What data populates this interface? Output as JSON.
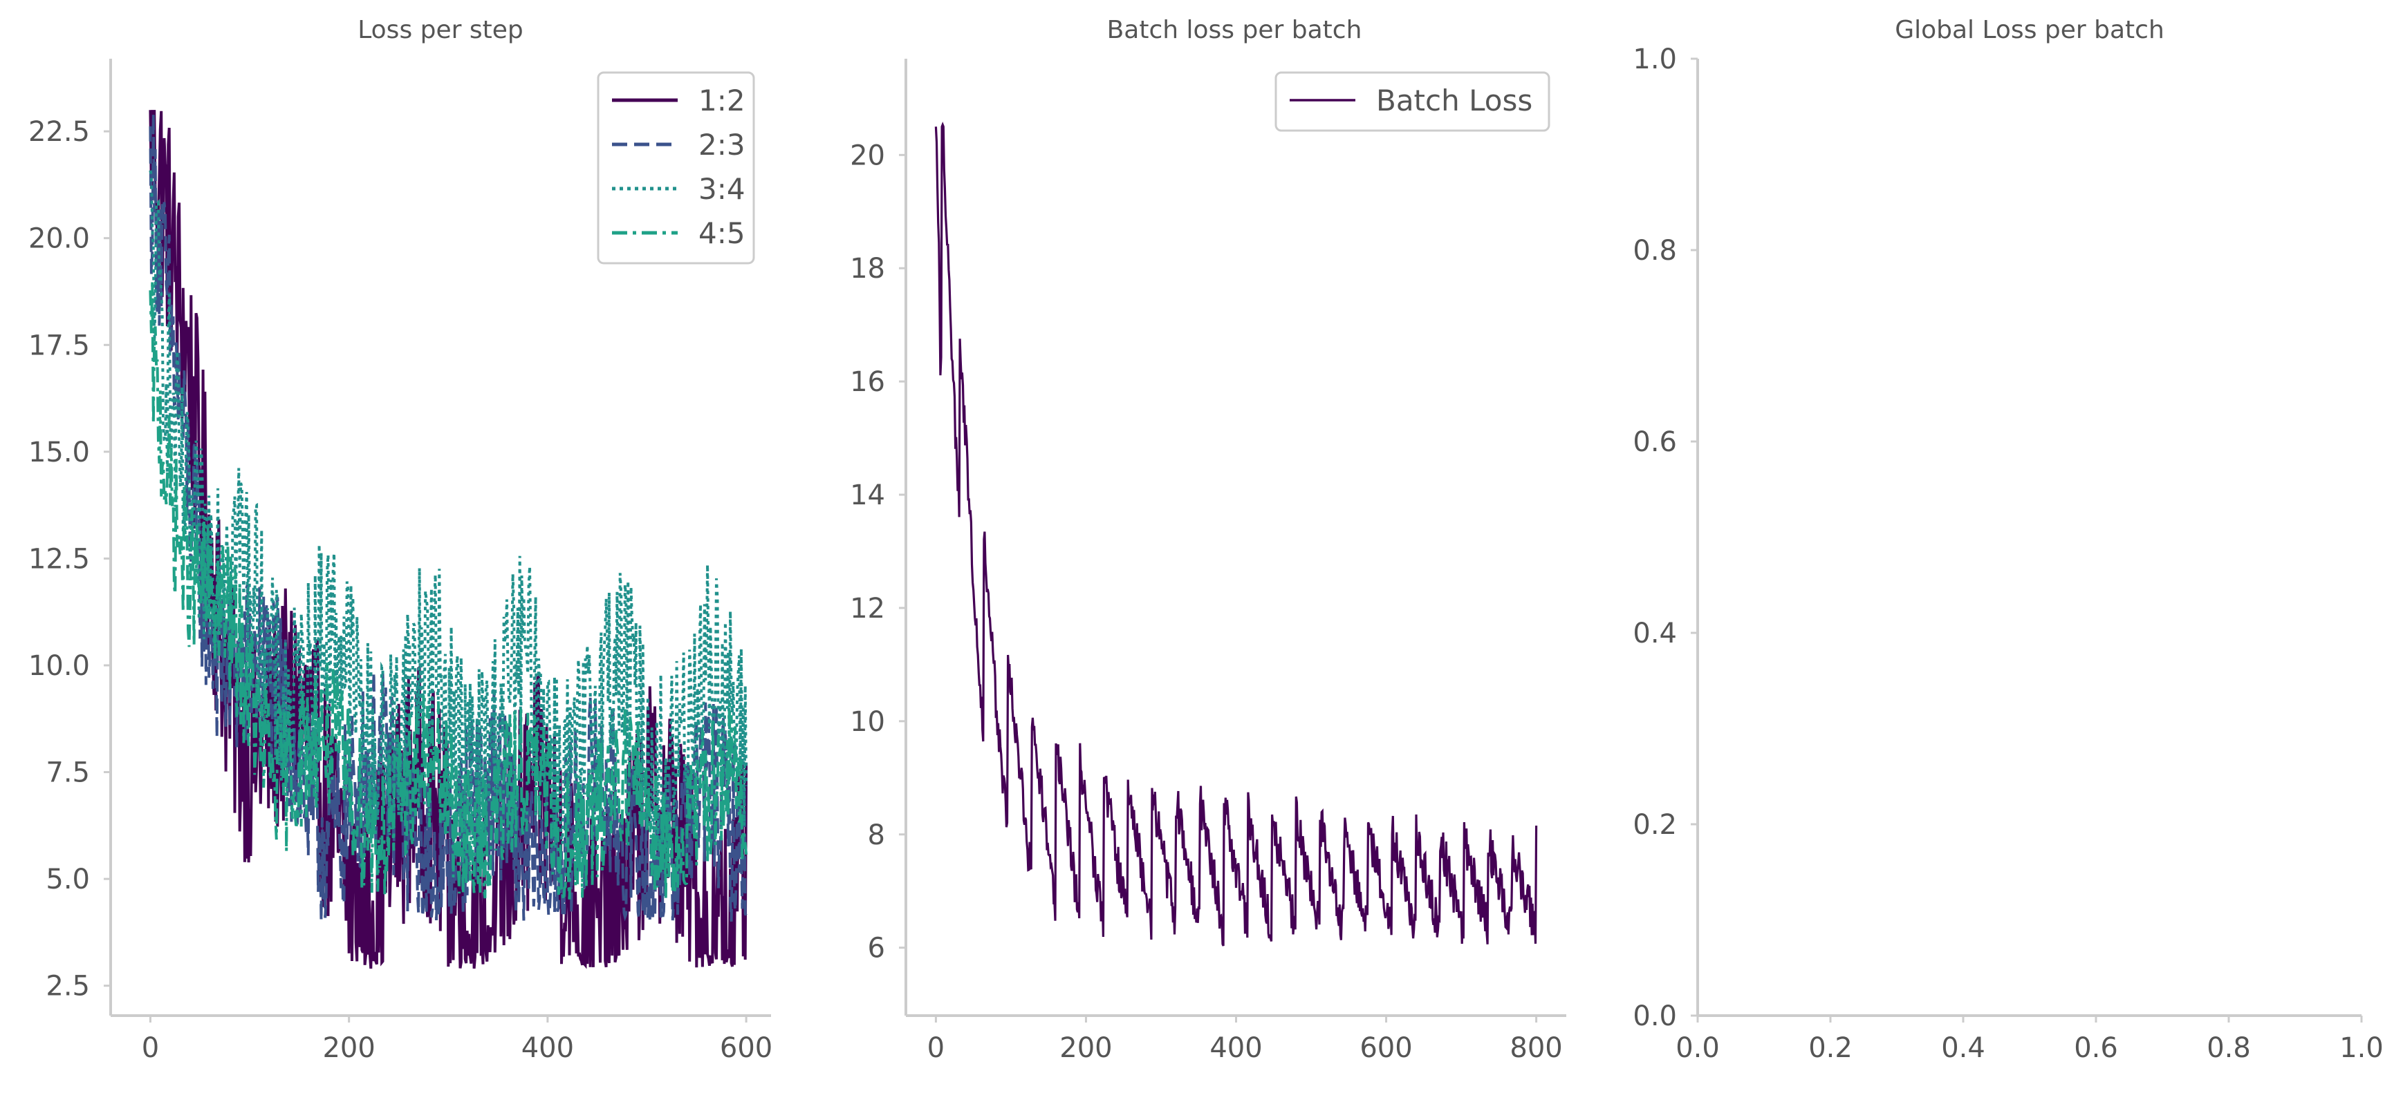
{
  "chart_data": [
    {
      "type": "line",
      "title": "Loss per step",
      "xlim": [
        -40,
        625
      ],
      "ylim": [
        1.8,
        24.2
      ],
      "xticks": [
        "0",
        "200",
        "400",
        "600"
      ],
      "yticks": [
        "2.5",
        "5.0",
        "7.5",
        "10.0",
        "12.5",
        "15.0",
        "17.5",
        "20.0",
        "22.5"
      ],
      "legend": "top-right",
      "series": [
        {
          "name": "1:2",
          "color": "#440154",
          "dash": "solid",
          "start": 23.0,
          "end": 5.2,
          "noise": 2.6,
          "floor": 2.9,
          "amp": 1.6,
          "period": 120
        },
        {
          "name": "2:3",
          "color": "#3b528b",
          "dash": "dashed",
          "start": 20.5,
          "end": 6.0,
          "noise": 2.0,
          "floor": 4.0,
          "amp": 1.2,
          "period": 110
        },
        {
          "name": "3:4",
          "color": "#21918c",
          "dash": "dotted",
          "start": 19.0,
          "end": 8.8,
          "noise": 2.2,
          "floor": 5.5,
          "amp": 1.3,
          "period": 95
        },
        {
          "name": "4:5",
          "color": "#1fa187",
          "dash": "dashdot",
          "start": 17.5,
          "end": 6.6,
          "noise": 1.6,
          "floor": 4.5,
          "amp": 0.9,
          "period": 100
        }
      ]
    },
    {
      "type": "line",
      "title": "Batch loss per batch",
      "xlim": [
        -40,
        840
      ],
      "ylim": [
        4.8,
        21.7
      ],
      "xticks": [
        "0",
        "200",
        "400",
        "600",
        "800"
      ],
      "yticks": [
        "6",
        "8",
        "10",
        "12",
        "14",
        "16",
        "18",
        "20"
      ],
      "legend": "top-right",
      "series": [
        {
          "name": "Batch Loss",
          "color": "#440154",
          "dash": "solid",
          "start": 20.8,
          "end": 6.3,
          "noise": 0.4,
          "floor": 5.6,
          "period": 32
        }
      ]
    },
    {
      "type": "line",
      "title": "Global Loss per batch",
      "xlim": [
        0,
        1
      ],
      "ylim": [
        0,
        1
      ],
      "xticks": [
        "0.0",
        "0.2",
        "0.4",
        "0.6",
        "0.8",
        "1.0"
      ],
      "yticks": [
        "0.0",
        "0.2",
        "0.4",
        "0.6",
        "0.8",
        "1.0"
      ],
      "legend": "none",
      "series": []
    }
  ]
}
